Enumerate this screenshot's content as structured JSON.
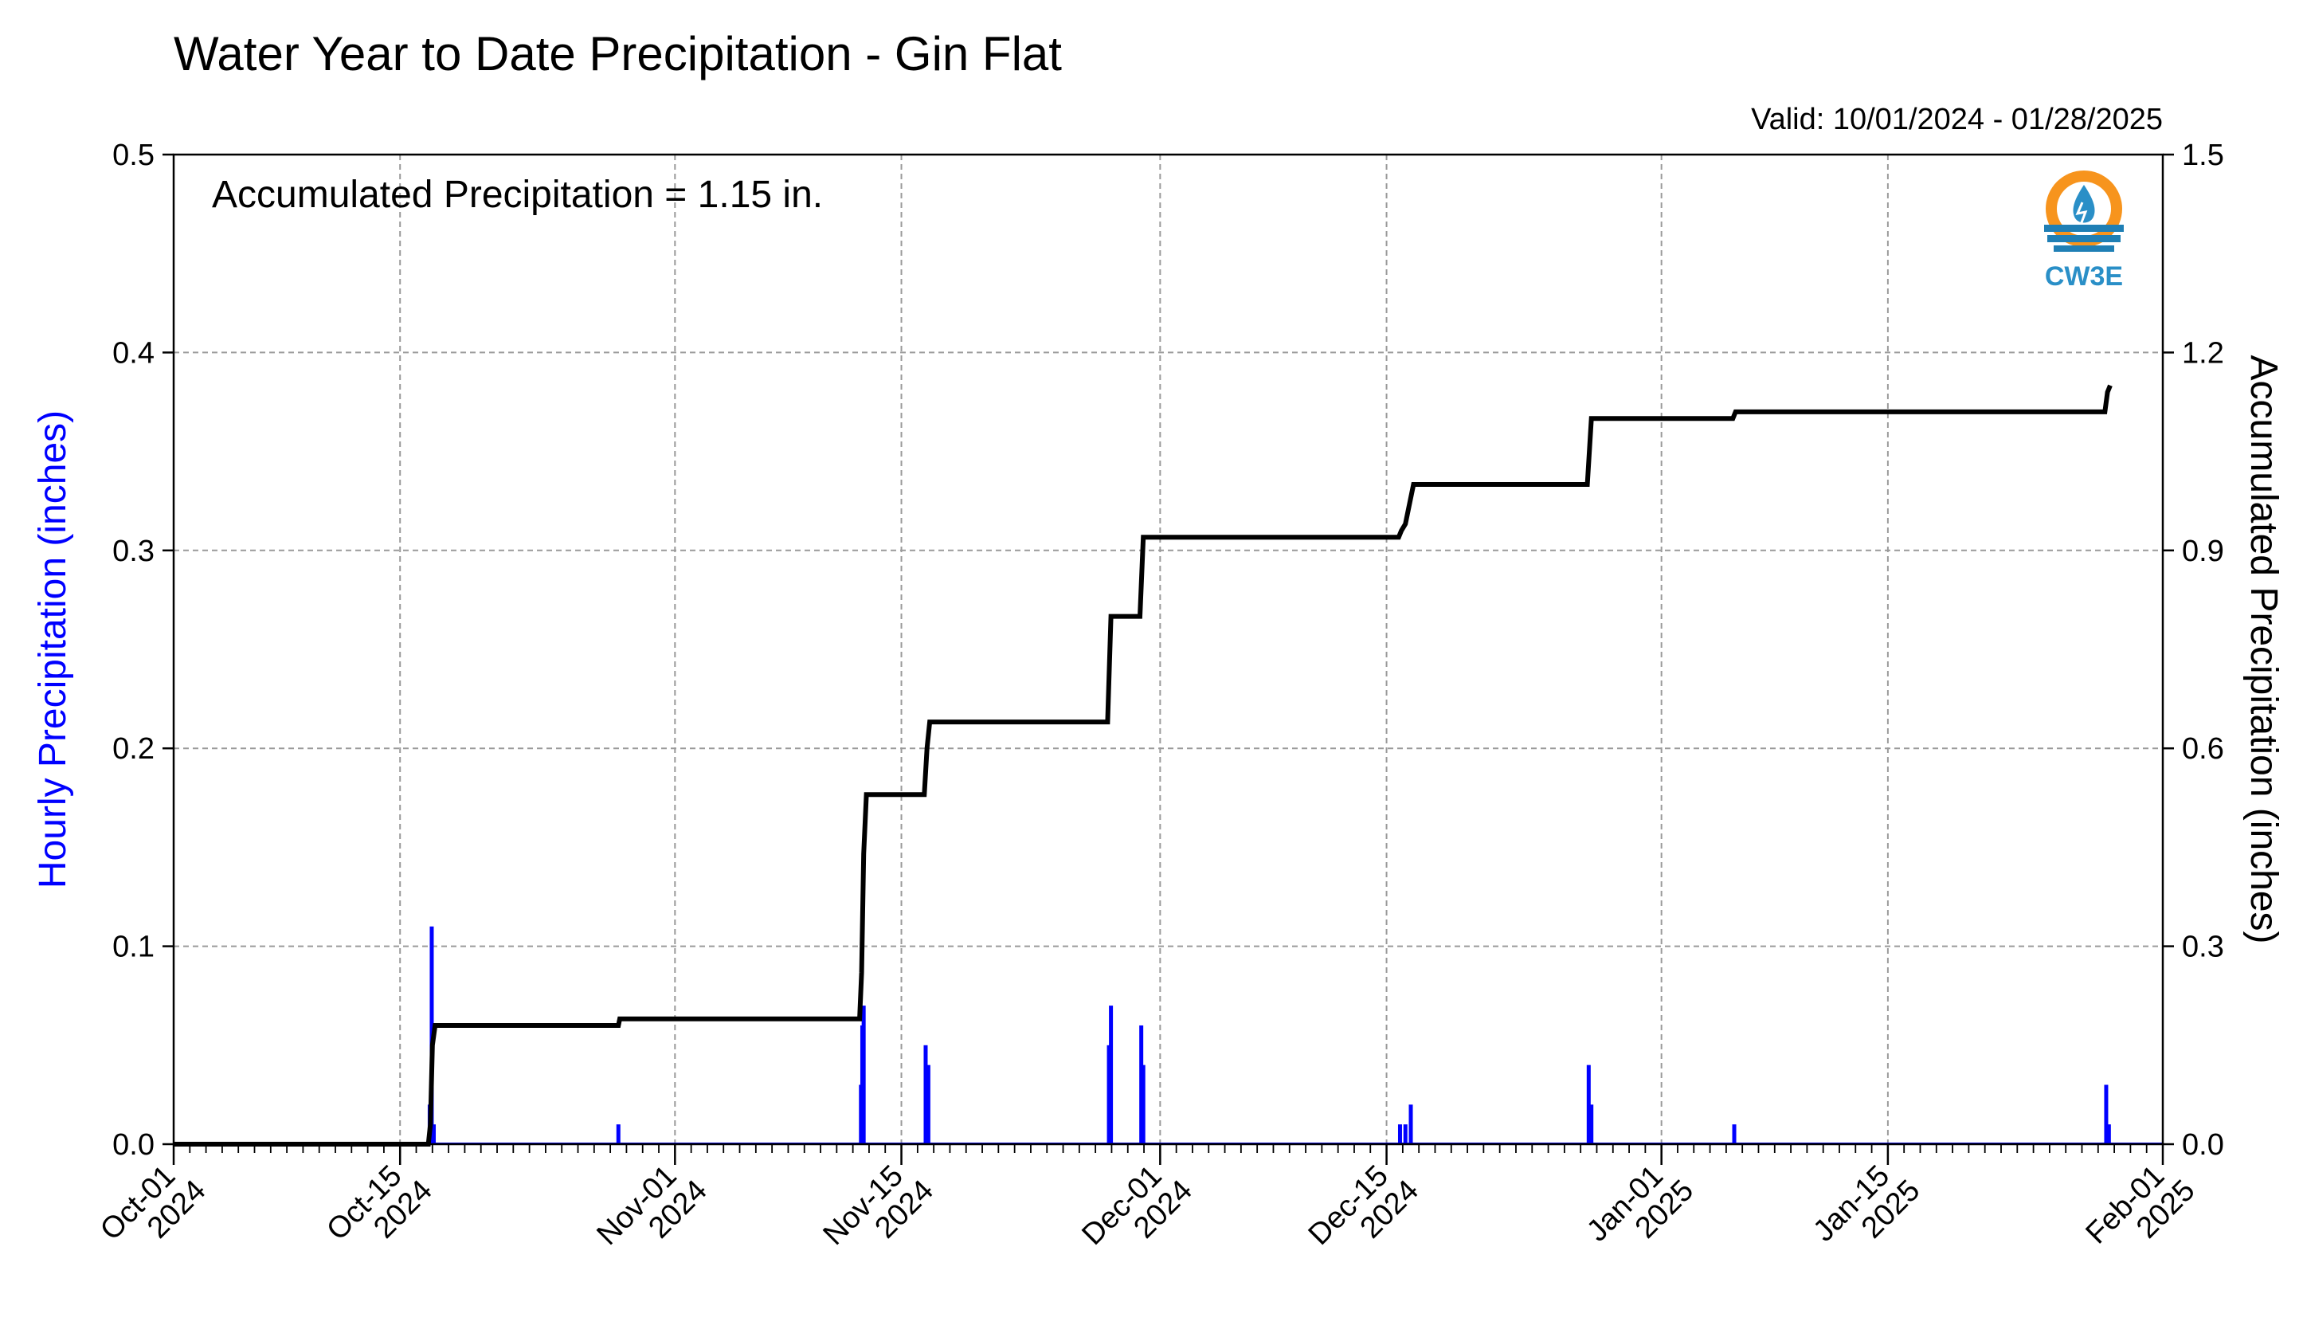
{
  "chart_data": {
    "type": "bar+line",
    "title": "Water Year to Date Precipitation - Gin Flat",
    "valid_text": "Valid: 10/01/2024 - 01/28/2025",
    "annotation": "Accumulated Precipitation = 1.15 in.",
    "logo_text": "CW3E",
    "left_axis": {
      "label": "Hourly Precipitation (inches)",
      "range": [
        0,
        0.5
      ],
      "ticks": [
        "0.0",
        "0.1",
        "0.2",
        "0.3",
        "0.4",
        "0.5"
      ],
      "tick_values": [
        0,
        0.1,
        0.2,
        0.3,
        0.4,
        0.5
      ],
      "color": "#0000ff"
    },
    "right_axis": {
      "label": "Accumulated Precipitation (inches)",
      "range": [
        0,
        1.5
      ],
      "ticks": [
        "0.0",
        "0.3",
        "0.6",
        "0.9",
        "1.2",
        "1.5"
      ],
      "tick_values": [
        0,
        0.3,
        0.6,
        0.9,
        1.2,
        1.5
      ],
      "color": "#000000"
    },
    "x_axis": {
      "start_date": "2024-10-01",
      "end_date": "2025-02-01",
      "ticks": [
        {
          "date": "2024-10-01",
          "line1": "Oct-01",
          "line2": "2024"
        },
        {
          "date": "2024-10-15",
          "line1": "Oct-15",
          "line2": "2024"
        },
        {
          "date": "2024-11-01",
          "line1": "Nov-01",
          "line2": "2024"
        },
        {
          "date": "2024-11-15",
          "line1": "Nov-15",
          "line2": "2024"
        },
        {
          "date": "2024-12-01",
          "line1": "Dec-01",
          "line2": "2024"
        },
        {
          "date": "2024-12-15",
          "line1": "Dec-15",
          "line2": "2024"
        },
        {
          "date": "2025-01-01",
          "line1": "Jan-01",
          "line2": "2025"
        },
        {
          "date": "2025-01-15",
          "line1": "Jan-15",
          "line2": "2025"
        },
        {
          "date": "2025-02-01",
          "line1": "Feb-01",
          "line2": "2025"
        }
      ]
    },
    "grid": true,
    "hourly_series": {
      "name": "Hourly Precipitation",
      "color": "#0000ff",
      "points": [
        {
          "date": "2024-10-16 20:00",
          "value": 0.02
        },
        {
          "date": "2024-10-16 23:00",
          "value": 0.11
        },
        {
          "date": "2024-10-17 02:00",
          "value": 0.01
        },
        {
          "date": "2024-10-28 12:00",
          "value": 0.01
        },
        {
          "date": "2024-11-12 12:00",
          "value": 0.03
        },
        {
          "date": "2024-11-12 14:00",
          "value": 0.06
        },
        {
          "date": "2024-11-12 16:00",
          "value": 0.07
        },
        {
          "date": "2024-11-16 12:00",
          "value": 0.05
        },
        {
          "date": "2024-11-16 16:00",
          "value": 0.04
        },
        {
          "date": "2024-11-27 20:00",
          "value": 0.05
        },
        {
          "date": "2024-11-27 23:00",
          "value": 0.07
        },
        {
          "date": "2024-11-29 20:00",
          "value": 0.06
        },
        {
          "date": "2024-11-29 23:00",
          "value": 0.04
        },
        {
          "date": "2024-12-15 20:00",
          "value": 0.01
        },
        {
          "date": "2024-12-16 04:00",
          "value": 0.01
        },
        {
          "date": "2024-12-16 12:00",
          "value": 0.02
        },
        {
          "date": "2024-12-27 12:00",
          "value": 0.04
        },
        {
          "date": "2024-12-27 16:00",
          "value": 0.02
        },
        {
          "date": "2025-01-05 12:00",
          "value": 0.01
        },
        {
          "date": "2025-01-28 12:00",
          "value": 0.03
        },
        {
          "date": "2025-01-28 16:00",
          "value": 0.01
        }
      ]
    },
    "accumulated_series": {
      "name": "Accumulated Precipitation",
      "color": "#000000",
      "points": [
        {
          "date": "2024-10-01 00:00",
          "value": 0.0
        },
        {
          "date": "2024-10-16 18:00",
          "value": 0.0
        },
        {
          "date": "2024-10-16 21:00",
          "value": 0.03
        },
        {
          "date": "2024-10-17 00:00",
          "value": 0.15
        },
        {
          "date": "2024-10-17 04:00",
          "value": 0.18
        },
        {
          "date": "2024-10-28 12:00",
          "value": 0.18
        },
        {
          "date": "2024-10-28 14:00",
          "value": 0.19
        },
        {
          "date": "2024-11-12 10:00",
          "value": 0.19
        },
        {
          "date": "2024-11-12 13:00",
          "value": 0.26
        },
        {
          "date": "2024-11-12 16:00",
          "value": 0.44
        },
        {
          "date": "2024-11-12 20:00",
          "value": 0.53
        },
        {
          "date": "2024-11-16 10:00",
          "value": 0.53
        },
        {
          "date": "2024-11-16 14:00",
          "value": 0.6
        },
        {
          "date": "2024-11-16 18:00",
          "value": 0.64
        },
        {
          "date": "2024-11-27 18:00",
          "value": 0.64
        },
        {
          "date": "2024-11-27 23:00",
          "value": 0.8
        },
        {
          "date": "2024-11-29 18:00",
          "value": 0.8
        },
        {
          "date": "2024-11-29 23:00",
          "value": 0.92
        },
        {
          "date": "2024-12-15 18:00",
          "value": 0.92
        },
        {
          "date": "2024-12-15 22:00",
          "value": 0.93
        },
        {
          "date": "2024-12-16 04:00",
          "value": 0.94
        },
        {
          "date": "2024-12-16 10:00",
          "value": 0.97
        },
        {
          "date": "2024-12-16 16:00",
          "value": 1.0
        },
        {
          "date": "2024-12-27 10:00",
          "value": 1.0
        },
        {
          "date": "2024-12-27 16:00",
          "value": 1.1
        },
        {
          "date": "2025-01-05 10:00",
          "value": 1.1
        },
        {
          "date": "2025-01-05 14:00",
          "value": 1.11
        },
        {
          "date": "2025-01-28 10:00",
          "value": 1.11
        },
        {
          "date": "2025-01-28 14:00",
          "value": 1.14
        },
        {
          "date": "2025-01-28 18:00",
          "value": 1.15
        }
      ]
    }
  }
}
